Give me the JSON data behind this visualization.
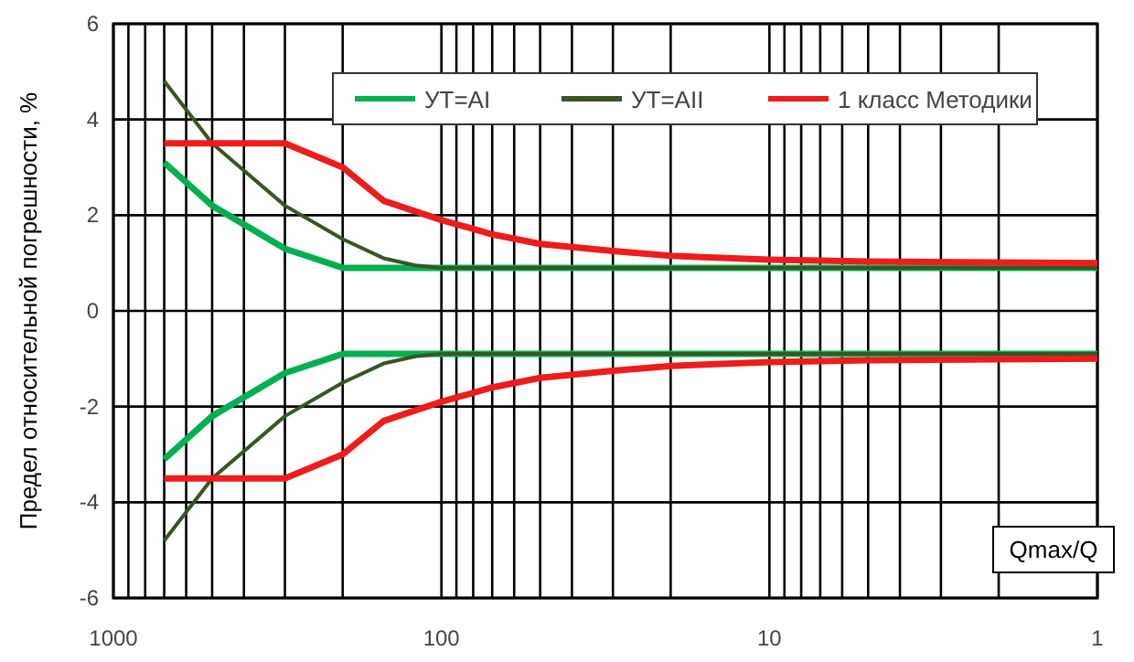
{
  "chart_data": {
    "type": "line",
    "ylabel": "Предел относительной погрешности, %",
    "xlabel": "Qmax/Q",
    "log": "x",
    "grid": true,
    "legend": "top",
    "line_style": "solid",
    "marker": "none",
    "xlim": [
      1000,
      1
    ],
    "ylim": [
      -6,
      6
    ],
    "yticks": [
      -6,
      -4,
      -2,
      0,
      2,
      4,
      6
    ],
    "xticks": [
      1000,
      {
        "value": 900,
        "label": null
      },
      {
        "value": 800,
        "label": null
      },
      {
        "value": 700,
        "label": null
      },
      {
        "value": 600,
        "label": null
      },
      {
        "value": 500,
        "label": null
      },
      {
        "value": 400,
        "label": null
      },
      {
        "value": 300,
        "label": null
      },
      {
        "value": 200,
        "label": null
      },
      100,
      {
        "value": 90,
        "label": null
      },
      {
        "value": 80,
        "label": null
      },
      {
        "value": 70,
        "label": null
      },
      {
        "value": 60,
        "label": null
      },
      {
        "value": 50,
        "label": null
      },
      {
        "value": 40,
        "label": null
      },
      {
        "value": 30,
        "label": null
      },
      {
        "value": 20,
        "label": null
      },
      10,
      {
        "value": 9,
        "label": null
      },
      {
        "value": 8,
        "label": null
      },
      {
        "value": 7,
        "label": null
      },
      {
        "value": 6,
        "label": null
      },
      {
        "value": 5,
        "label": null
      },
      {
        "value": 4,
        "label": null
      },
      {
        "value": 3,
        "label": null
      },
      {
        "value": 2,
        "label": null
      },
      1
    ],
    "series": [
      {
        "name": "УТ=AI",
        "color": "#00b050",
        "x": [
          700,
          500,
          300,
          200,
          1
        ],
        "values": [
          3.1,
          2.2,
          1.3,
          0.9,
          0.9
        ]
      },
      {
        "name": "УТ=AII",
        "color": "#375623",
        "x": [
          700,
          500,
          300,
          200,
          150,
          120,
          100,
          1
        ],
        "values": [
          4.8,
          3.5,
          2.2,
          1.5,
          1.1,
          0.95,
          0.9,
          0.9
        ]
      },
      {
        "name": "1 класс Методики",
        "color": "#ee1c1c",
        "x": [
          700,
          300,
          200,
          150,
          100,
          70,
          50,
          30,
          20,
          10,
          5,
          1
        ],
        "values": [
          3.5,
          3.5,
          3.0,
          2.3,
          1.9,
          1.6,
          1.4,
          1.25,
          1.15,
          1.07,
          1.03,
          1.0
        ]
      },
      {
        "color": "#00b050",
        "x": [
          700,
          500,
          300,
          200,
          1
        ],
        "values": [
          -3.1,
          -2.2,
          -1.3,
          -0.9,
          -0.9
        ]
      },
      {
        "color": "#375623",
        "x": [
          700,
          500,
          300,
          200,
          150,
          120,
          100,
          1
        ],
        "values": [
          -4.8,
          -3.5,
          -2.2,
          -1.5,
          -1.1,
          -0.95,
          -0.9,
          -0.9
        ]
      },
      {
        "color": "#ee1c1c",
        "x": [
          700,
          300,
          200,
          150,
          100,
          70,
          50,
          30,
          20,
          10,
          5,
          1
        ],
        "values": [
          -3.5,
          -3.5,
          -3.0,
          -2.3,
          -1.9,
          -1.6,
          -1.4,
          -1.25,
          -1.15,
          -1.07,
          -1.03,
          -1.0
        ]
      }
    ]
  }
}
